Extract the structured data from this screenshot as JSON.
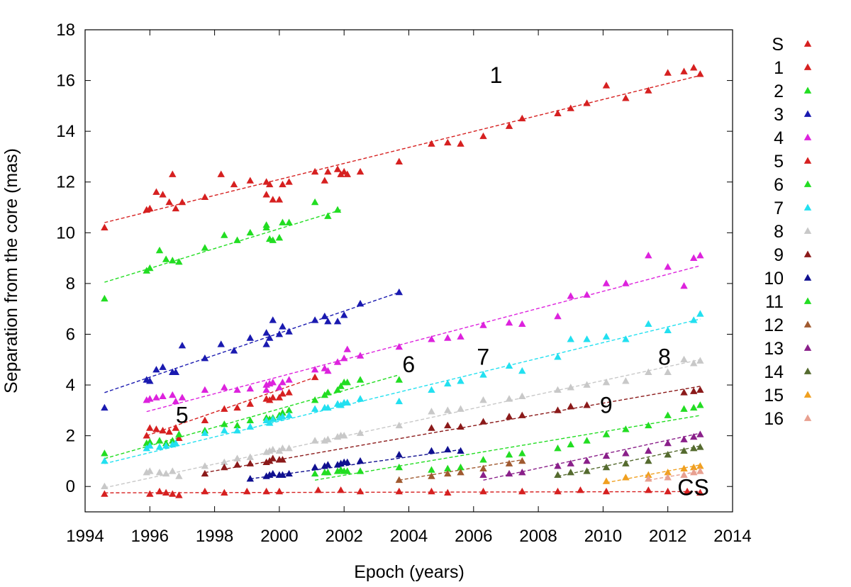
{
  "chart_data": {
    "type": "scatter",
    "xlabel": "Epoch (years)",
    "ylabel": "Separation from the core (mas)",
    "xlim": [
      1994,
      2014
    ],
    "ylim": [
      -1,
      18
    ],
    "xticks": [
      "1994",
      "1996",
      "1998",
      "2000",
      "2002",
      "2004",
      "2006",
      "2008",
      "2010",
      "2012",
      "2014"
    ],
    "yticks": [
      "0",
      "2",
      "4",
      "6",
      "8",
      "10",
      "12",
      "14",
      "16",
      "18"
    ],
    "grid": false,
    "legend_position": "right, outside plot",
    "series": [
      {
        "name": "S",
        "color": "#d62020",
        "x": [
          1994.6,
          1996.0,
          1996.3,
          1996.5,
          1996.7,
          1996.9,
          1997.7,
          1998.3,
          1999.0,
          1999.6,
          2000.0,
          2001.2,
          2001.9,
          2002.5,
          2003.7,
          2004.7,
          2005.2,
          2006.3,
          2007.5,
          2008.6,
          2009.3,
          2010.1,
          2011.4,
          2012.0,
          2012.6,
          2013.0
        ],
        "y": [
          -0.3,
          -0.3,
          -0.2,
          -0.25,
          -0.3,
          -0.35,
          -0.2,
          -0.25,
          -0.2,
          -0.2,
          -0.2,
          -0.15,
          -0.15,
          -0.2,
          -0.2,
          -0.2,
          -0.25,
          -0.2,
          -0.2,
          -0.2,
          -0.15,
          -0.2,
          -0.15,
          -0.2,
          -0.2,
          -0.25
        ],
        "fit": [
          [
            1994.6,
            -0.25
          ],
          [
            2013.0,
            -0.2
          ]
        ]
      },
      {
        "name": "1",
        "color": "#d62020",
        "x": [
          1994.6,
          1995.9,
          1996.0,
          1996.2,
          1996.4,
          1996.6,
          1996.7,
          1996.8,
          1997.0,
          1997.7,
          1998.2,
          1998.6,
          1999.1,
          1999.6,
          1999.6,
          1999.7,
          1999.8,
          2000.0,
          2000.1,
          2000.3,
          2001.1,
          2001.4,
          2001.5,
          2001.8,
          2001.9,
          2002.0,
          2002.1,
          2002.5,
          2003.7,
          2004.7,
          2005.2,
          2005.6,
          2006.3,
          2007.1,
          2007.5,
          2008.6,
          2009.0,
          2009.5,
          2010.1,
          2010.7,
          2011.4,
          2012.0,
          2012.5,
          2012.8,
          2013.0
        ],
        "y": [
          10.2,
          10.9,
          10.95,
          11.6,
          11.5,
          11.2,
          12.3,
          10.95,
          11.2,
          11.4,
          12.3,
          11.9,
          12.05,
          12.0,
          11.5,
          11.9,
          11.3,
          11.3,
          11.9,
          12.0,
          12.4,
          12.05,
          12.4,
          12.5,
          12.3,
          12.4,
          12.3,
          12.4,
          12.8,
          13.5,
          13.55,
          13.5,
          13.8,
          14.2,
          14.5,
          14.7,
          14.9,
          15.1,
          15.8,
          15.3,
          15.6,
          16.3,
          16.35,
          16.5,
          16.25
        ],
        "fit": [
          [
            1994.6,
            10.4
          ],
          [
            2013.0,
            16.2
          ]
        ]
      },
      {
        "name": "2",
        "color": "#22dd22",
        "x": [
          1994.6,
          1995.9,
          1996.0,
          1996.3,
          1996.5,
          1996.7,
          1996.9,
          1997.7,
          1998.3,
          1998.7,
          1999.1,
          1999.6,
          1999.6,
          1999.7,
          1999.8,
          2000.0,
          2000.1,
          2000.3,
          2001.1,
          2001.5,
          2001.8
        ],
        "y": [
          7.4,
          8.5,
          8.6,
          9.3,
          8.95,
          8.9,
          8.85,
          9.4,
          9.9,
          9.7,
          10.0,
          10.2,
          10.3,
          9.75,
          9.7,
          9.8,
          10.4,
          10.4,
          11.2,
          10.65,
          10.9
        ],
        "fit": [
          [
            1994.6,
            8.05
          ],
          [
            2001.9,
            10.9
          ]
        ]
      },
      {
        "name": "3",
        "color": "#1a1ab0",
        "x": [
          1994.6,
          1995.9,
          1996.0,
          1996.2,
          1996.4,
          1996.7,
          1996.8,
          1997.0,
          1997.7,
          1998.2,
          1998.6,
          1999.1,
          1999.6,
          1999.6,
          1999.7,
          1999.8,
          2000.0,
          2000.1,
          2000.3,
          2001.1,
          2001.4,
          2001.5,
          2001.8,
          2002.0,
          2002.5,
          2003.7
        ],
        "y": [
          3.1,
          4.2,
          4.15,
          4.6,
          4.7,
          4.5,
          4.5,
          5.55,
          5.05,
          5.6,
          5.35,
          5.85,
          6.05,
          5.6,
          5.85,
          6.55,
          6.0,
          6.3,
          6.1,
          6.55,
          6.7,
          6.5,
          6.5,
          6.75,
          7.2,
          7.65
        ],
        "fit": [
          [
            1994.6,
            3.7
          ],
          [
            2003.7,
            7.65
          ]
        ]
      },
      {
        "name": "4",
        "color": "#dd22dd",
        "x": [
          1995.9,
          1996.0,
          1996.2,
          1996.4,
          1996.7,
          1996.8,
          1997.0,
          1997.7,
          1998.3,
          1998.7,
          1999.1,
          1999.6,
          1999.6,
          1999.7,
          1999.8,
          2000.0,
          2000.1,
          2000.3,
          2001.1,
          2001.4,
          2001.5,
          2001.8,
          2002.0,
          2002.1,
          2002.5,
          2003.7,
          2004.7,
          2005.2,
          2005.6,
          2006.3,
          2007.1,
          2007.5,
          2008.6,
          2009.0,
          2009.5,
          2010.1,
          2010.7,
          2011.4,
          2012.0,
          2012.5,
          2012.8,
          2013.0
        ],
        "y": [
          3.4,
          3.45,
          3.5,
          3.55,
          3.6,
          3.35,
          3.5,
          3.8,
          3.9,
          3.8,
          3.85,
          4.0,
          3.8,
          4.05,
          4.1,
          3.9,
          4.1,
          4.2,
          4.6,
          4.65,
          4.55,
          4.9,
          5.05,
          5.4,
          5.15,
          5.5,
          5.8,
          5.85,
          5.9,
          6.35,
          6.45,
          6.4,
          6.7,
          7.5,
          7.55,
          8.0,
          8.0,
          9.1,
          8.65,
          7.9,
          9.0,
          9.1
        ],
        "fit": [
          [
            1995.9,
            2.95
          ],
          [
            2013.0,
            8.7
          ]
        ]
      },
      {
        "name": "5",
        "color": "#d62020",
        "x": [
          1995.9,
          1996.0,
          1996.2,
          1996.4,
          1996.6,
          1996.8,
          1996.9,
          1997.7,
          1998.3,
          1998.7,
          1999.1,
          1999.6,
          1999.7,
          1999.8,
          2000.0,
          2000.1,
          2000.3,
          2001.1
        ],
        "y": [
          2.0,
          2.3,
          2.25,
          2.2,
          2.15,
          2.3,
          1.9,
          2.6,
          3.05,
          3.1,
          3.25,
          3.45,
          3.4,
          3.5,
          3.5,
          3.65,
          3.7,
          4.3
        ],
        "fit": [
          [
            1995.9,
            2.0
          ],
          [
            2001.1,
            4.3
          ]
        ]
      },
      {
        "name": "6",
        "color": "#22dd22",
        "x": [
          1994.6,
          1995.9,
          1996.0,
          1996.3,
          1996.5,
          1996.7,
          1996.9,
          1997.7,
          1998.3,
          1998.7,
          1999.1,
          1999.6,
          1999.7,
          1999.8,
          2000.0,
          2000.1,
          2000.3,
          2001.1,
          2001.4,
          2001.5,
          2001.8,
          2001.9,
          2002.0,
          2002.1,
          2002.5,
          2003.7
        ],
        "y": [
          1.3,
          1.7,
          1.75,
          1.8,
          1.7,
          1.8,
          2.05,
          2.2,
          2.45,
          2.4,
          2.6,
          2.7,
          2.65,
          2.7,
          2.8,
          2.9,
          3.0,
          3.4,
          3.6,
          3.7,
          3.8,
          3.95,
          4.1,
          4.1,
          4.2,
          4.2
        ],
        "fit": [
          [
            1994.6,
            1.1
          ],
          [
            2003.7,
            4.4
          ]
        ]
      },
      {
        "name": "7",
        "color": "#22e0f0",
        "x": [
          1994.6,
          1995.9,
          1996.0,
          1996.3,
          1996.5,
          1996.7,
          1996.8,
          1997.7,
          1998.3,
          1998.7,
          1999.1,
          1999.6,
          1999.7,
          1999.8,
          2000.0,
          2000.1,
          2000.3,
          2001.1,
          2001.4,
          2001.5,
          2001.8,
          2001.9,
          2002.0,
          2002.1,
          2002.5,
          2003.7,
          2004.7,
          2005.2,
          2005.6,
          2006.3,
          2007.1,
          2007.5,
          2008.6,
          2009.0,
          2009.5,
          2010.1,
          2010.7,
          2011.4,
          2012.0,
          2012.8,
          2013.0
        ],
        "y": [
          1.0,
          1.5,
          1.6,
          1.55,
          1.6,
          1.65,
          1.7,
          2.1,
          2.2,
          2.2,
          2.35,
          2.6,
          2.5,
          2.65,
          2.7,
          2.75,
          2.8,
          3.05,
          3.1,
          3.1,
          3.25,
          3.2,
          3.3,
          3.3,
          3.45,
          3.35,
          3.8,
          4.05,
          4.15,
          4.4,
          4.75,
          4.55,
          5.1,
          5.8,
          5.8,
          5.9,
          5.8,
          6.4,
          6.15,
          6.55,
          6.8
        ],
        "fit": [
          [
            1994.6,
            0.9
          ],
          [
            2013.0,
            6.6
          ]
        ]
      },
      {
        "name": "8",
        "color": "#c8c8c8",
        "x": [
          1994.6,
          1995.9,
          1996.0,
          1996.3,
          1996.5,
          1996.7,
          1996.9,
          1997.7,
          1998.3,
          1998.7,
          1999.1,
          1999.6,
          1999.7,
          1999.8,
          2000.0,
          2000.1,
          2000.3,
          2001.1,
          2001.4,
          2001.5,
          2001.8,
          2001.9,
          2002.0,
          2002.5,
          2003.7,
          2004.7,
          2005.2,
          2005.6,
          2006.3,
          2007.1,
          2007.5,
          2008.6,
          2009.0,
          2009.5,
          2010.1,
          2010.7,
          2011.4,
          2012.0,
          2012.5,
          2012.8,
          2013.0
        ],
        "y": [
          0.0,
          0.55,
          0.6,
          0.55,
          0.5,
          0.6,
          0.4,
          0.8,
          0.95,
          1.1,
          1.15,
          1.35,
          1.4,
          1.45,
          1.4,
          1.5,
          1.5,
          1.8,
          1.8,
          1.85,
          1.95,
          2.0,
          2.0,
          2.1,
          2.4,
          2.95,
          3.0,
          3.05,
          3.4,
          3.45,
          3.55,
          3.8,
          3.9,
          4.0,
          4.1,
          4.15,
          4.5,
          4.5,
          5.0,
          4.85,
          4.95
        ],
        "fit": [
          [
            1994.6,
            -0.05
          ],
          [
            2013.0,
            5.0
          ]
        ]
      },
      {
        "name": "9",
        "color": "#8b1a1a",
        "x": [
          1997.7,
          1998.3,
          1998.7,
          1999.1,
          1999.6,
          1999.7,
          1999.8,
          2000.0,
          2000.1,
          2004.7,
          2005.2,
          2005.6,
          2006.3,
          2007.1,
          2007.5,
          2008.6,
          2009.0,
          2009.5,
          2012.5,
          2012.8,
          2013.0
        ],
        "y": [
          0.5,
          0.75,
          0.85,
          0.9,
          0.95,
          1.0,
          1.1,
          1.05,
          1.05,
          2.3,
          2.4,
          2.35,
          2.55,
          2.75,
          2.8,
          3.0,
          3.15,
          3.2,
          3.7,
          3.75,
          3.8
        ],
        "fit": [
          [
            1997.7,
            0.55
          ],
          [
            2013.0,
            3.95
          ]
        ]
      },
      {
        "name": "10",
        "color": "#101090",
        "x": [
          1999.1,
          1999.6,
          1999.7,
          1999.8,
          2000.0,
          2000.1,
          2000.3,
          2001.1,
          2001.4,
          2001.5,
          2001.8,
          2001.9,
          2002.0,
          2002.1,
          2002.5,
          2003.7,
          2004.7,
          2005.2,
          2005.6
        ],
        "y": [
          0.3,
          0.4,
          0.45,
          0.5,
          0.45,
          0.45,
          0.5,
          0.75,
          0.8,
          0.85,
          0.85,
          0.9,
          0.95,
          0.95,
          1.0,
          1.25,
          1.4,
          1.45,
          1.4
        ],
        "fit": [
          [
            1999.1,
            0.3
          ],
          [
            2005.6,
            1.45
          ]
        ]
      },
      {
        "name": "11",
        "color": "#22dd22",
        "x": [
          2001.1,
          2001.4,
          2001.5,
          2001.8,
          2001.9,
          2002.0,
          2002.1,
          2002.5,
          2003.7,
          2004.7,
          2005.2,
          2005.6,
          2006.3,
          2007.1,
          2007.5,
          2008.6,
          2009.0,
          2009.5,
          2010.1,
          2010.7,
          2011.4,
          2012.0,
          2012.5,
          2012.8,
          2013.0
        ],
        "y": [
          0.5,
          0.55,
          0.55,
          0.6,
          0.65,
          0.6,
          0.6,
          0.6,
          0.75,
          0.65,
          0.7,
          0.75,
          1.05,
          1.25,
          1.3,
          1.5,
          1.65,
          1.8,
          2.05,
          2.25,
          2.4,
          2.8,
          3.05,
          3.1,
          3.2
        ],
        "fit": [
          [
            2001.1,
            0.25
          ],
          [
            2013.0,
            2.8
          ]
        ]
      },
      {
        "name": "12",
        "color": "#a05a30",
        "x": [
          2003.7,
          2004.7,
          2005.2,
          2005.6,
          2006.3,
          2007.1,
          2007.5
        ],
        "y": [
          0.25,
          0.4,
          0.5,
          0.55,
          0.7,
          0.9,
          1.0
        ],
        "fit": [
          [
            2003.7,
            0.25
          ],
          [
            2007.5,
            1.05
          ]
        ]
      },
      {
        "name": "13",
        "color": "#8a208a",
        "x": [
          2006.3,
          2007.1,
          2007.5,
          2008.6,
          2009.0,
          2009.5,
          2010.1,
          2010.7,
          2011.4,
          2012.0,
          2012.5,
          2012.8,
          2013.0
        ],
        "y": [
          0.45,
          0.5,
          0.55,
          0.8,
          0.9,
          1.0,
          1.2,
          1.3,
          1.4,
          1.7,
          1.85,
          1.95,
          2.05
        ],
        "fit": [
          [
            2006.3,
            0.25
          ],
          [
            2013.0,
            2.1
          ]
        ]
      },
      {
        "name": "14",
        "color": "#556b2f",
        "x": [
          2008.6,
          2009.0,
          2009.5,
          2010.1,
          2010.7,
          2011.4,
          2012.0,
          2012.5,
          2012.8,
          2013.0
        ],
        "y": [
          0.45,
          0.55,
          0.6,
          0.75,
          0.9,
          1.0,
          1.25,
          1.4,
          1.5,
          1.55
        ],
        "fit": [
          [
            2008.6,
            0.4
          ],
          [
            2013.0,
            1.6
          ]
        ]
      },
      {
        "name": "15",
        "color": "#f0a020",
        "x": [
          2010.1,
          2010.7,
          2011.4,
          2012.0,
          2012.5,
          2012.8,
          2013.0
        ],
        "y": [
          0.2,
          0.35,
          0.45,
          0.55,
          0.7,
          0.75,
          0.8
        ],
        "fit": [
          [
            2010.1,
            0.15
          ],
          [
            2013.0,
            0.85
          ]
        ]
      },
      {
        "name": "16",
        "color": "#e8a090",
        "x": [
          2011.4,
          2012.0,
          2012.5,
          2012.8,
          2013.0
        ],
        "y": [
          0.3,
          0.35,
          0.45,
          0.55,
          0.6
        ],
        "fit": [
          [
            2011.4,
            0.25
          ],
          [
            2013.0,
            0.6
          ]
        ]
      }
    ],
    "annotations": [
      {
        "text": "1",
        "x": 2006.5,
        "y": 15.9
      },
      {
        "text": "5",
        "x": 1996.8,
        "y": 2.5
      },
      {
        "text": "6",
        "x": 2003.8,
        "y": 4.5
      },
      {
        "text": "7",
        "x": 2006.1,
        "y": 4.8
      },
      {
        "text": "8",
        "x": 2011.7,
        "y": 4.8
      },
      {
        "text": "9",
        "x": 2009.9,
        "y": 2.9
      },
      {
        "text": "CS",
        "x": 2012.3,
        "y": -0.35
      }
    ]
  }
}
